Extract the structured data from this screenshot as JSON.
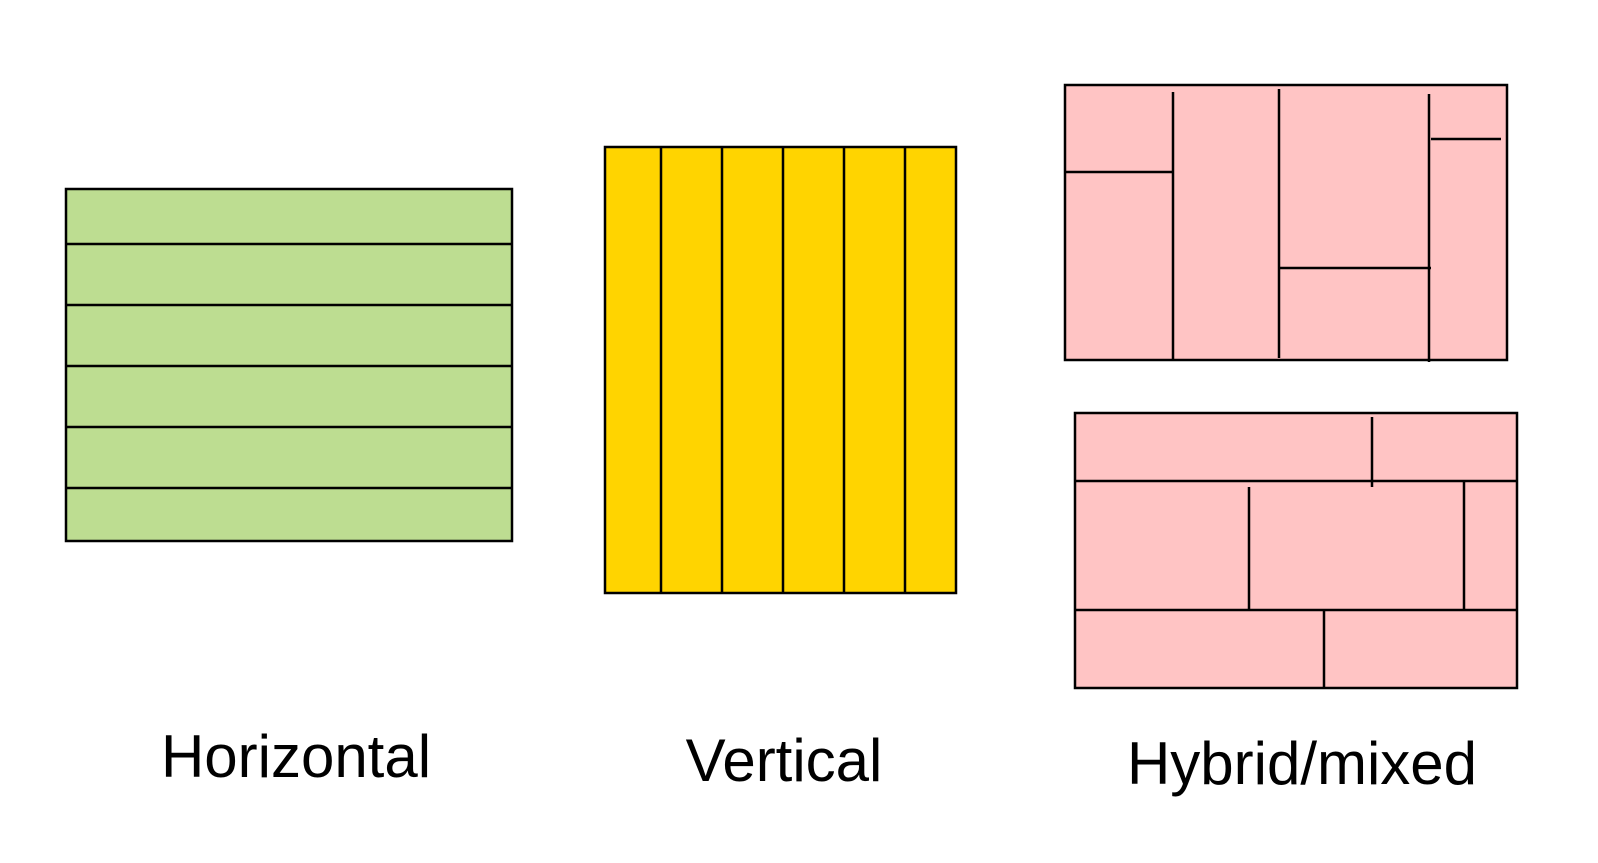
{
  "labels": {
    "horizontal": "Horizontal",
    "vertical": "Vertical",
    "hybrid": "Hybrid/mixed"
  },
  "colors": {
    "horizontal_fill": "#bddd91",
    "vertical_fill": "#ffd400",
    "hybrid_fill": "#ffc4c4",
    "stroke": "#000000"
  }
}
